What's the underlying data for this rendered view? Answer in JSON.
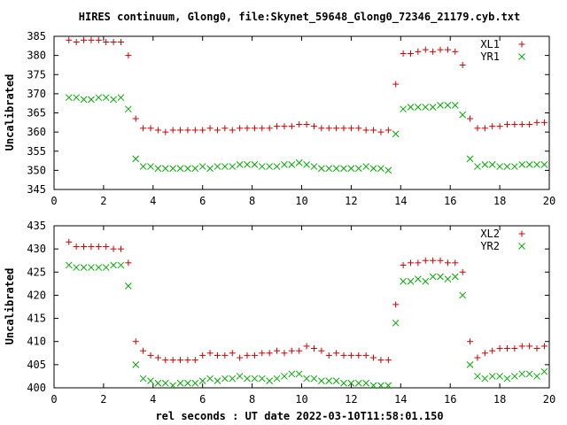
{
  "title": "HIRES continuum, Glong0, file:Skynet_59648_Glong0_72346_21179.cyb.txt",
  "xlabel": "rel seconds : UT date 2022-03-10T11:58:01.150",
  "chart_data": [
    {
      "type": "scatter",
      "ylabel": "Uncalibrated",
      "xlim": [
        0,
        20
      ],
      "ylim": [
        345,
        385
      ],
      "xticks": [
        "0",
        "2",
        "4",
        "6",
        "8",
        "10",
        "12",
        "14",
        "16",
        "18",
        "20"
      ],
      "yticks": [
        "345",
        "350",
        "355",
        "360",
        "365",
        "370",
        "375",
        "380",
        "385"
      ],
      "grid": false,
      "legend_position": "top-right",
      "series": [
        {
          "name": "XL1",
          "marker": "plus",
          "color": "#cc0000",
          "x": [
            0.6,
            0.9,
            1.2,
            1.5,
            1.8,
            2.1,
            2.4,
            2.7,
            3.0,
            3.3,
            3.6,
            3.9,
            4.2,
            4.5,
            4.8,
            5.1,
            5.4,
            5.7,
            6.0,
            6.3,
            6.6,
            6.9,
            7.2,
            7.5,
            7.8,
            8.1,
            8.4,
            8.7,
            9.0,
            9.3,
            9.6,
            9.9,
            10.2,
            10.5,
            10.8,
            11.1,
            11.4,
            11.7,
            12.0,
            12.3,
            12.6,
            12.9,
            13.2,
            13.5,
            13.8,
            14.1,
            14.4,
            14.7,
            15.0,
            15.3,
            15.6,
            15.9,
            16.2,
            16.5,
            16.8,
            17.1,
            17.4,
            17.7,
            18.0,
            18.3,
            18.6,
            18.9,
            19.2,
            19.5,
            19.8
          ],
          "y": [
            384,
            383.5,
            384,
            384,
            384,
            383.5,
            383.5,
            383.5,
            380,
            363.5,
            361,
            361,
            360.5,
            360,
            360.5,
            360.5,
            360.5,
            360.5,
            360.5,
            361,
            360.5,
            361,
            360.5,
            361,
            361,
            361,
            361,
            361,
            361.5,
            361.5,
            361.5,
            362,
            362,
            361.5,
            361,
            361,
            361,
            361,
            361,
            361,
            360.5,
            360.5,
            360,
            360.5,
            372.5,
            380.5,
            380.5,
            381,
            381.5,
            381,
            381.5,
            381.5,
            381,
            377.5,
            363.5,
            361,
            361,
            361.5,
            361.5,
            362,
            362,
            362,
            362,
            362.5,
            362.5
          ]
        },
        {
          "name": "YR1",
          "marker": "cross",
          "color": "#00aa00",
          "x": [
            0.6,
            0.9,
            1.2,
            1.5,
            1.8,
            2.1,
            2.4,
            2.7,
            3.0,
            3.3,
            3.6,
            3.9,
            4.2,
            4.5,
            4.8,
            5.1,
            5.4,
            5.7,
            6.0,
            6.3,
            6.6,
            6.9,
            7.2,
            7.5,
            7.8,
            8.1,
            8.4,
            8.7,
            9.0,
            9.3,
            9.6,
            9.9,
            10.2,
            10.5,
            10.8,
            11.1,
            11.4,
            11.7,
            12.0,
            12.3,
            12.6,
            12.9,
            13.2,
            13.5,
            13.8,
            14.1,
            14.4,
            14.7,
            15.0,
            15.3,
            15.6,
            15.9,
            16.2,
            16.5,
            16.8,
            17.1,
            17.4,
            17.7,
            18.0,
            18.3,
            18.6,
            18.9,
            19.2,
            19.5,
            19.8
          ],
          "y": [
            369,
            369,
            368.5,
            368.5,
            369,
            369,
            368.5,
            369,
            366,
            353,
            351,
            351,
            350.5,
            350.5,
            350.5,
            350.5,
            350.5,
            350.5,
            351,
            350.5,
            351,
            351,
            351,
            351.5,
            351.5,
            351.5,
            351,
            351,
            351,
            351.5,
            351.5,
            352,
            351.5,
            351,
            350.5,
            350.5,
            350.5,
            350.5,
            350.5,
            350.5,
            351,
            350.5,
            350.5,
            350,
            359.5,
            366,
            366.5,
            366.5,
            366.5,
            366.5,
            367,
            367,
            367,
            364.5,
            353,
            351,
            351.5,
            351.5,
            351,
            351,
            351,
            351.5,
            351.5,
            351.5,
            351.5
          ]
        }
      ]
    },
    {
      "type": "scatter",
      "ylabel": "Uncalibrated",
      "xlim": [
        0,
        20
      ],
      "ylim": [
        400,
        435
      ],
      "xticks": [
        "0",
        "2",
        "4",
        "6",
        "8",
        "10",
        "12",
        "14",
        "16",
        "18",
        "20"
      ],
      "yticks": [
        "400",
        "405",
        "410",
        "415",
        "420",
        "425",
        "430",
        "435"
      ],
      "grid": false,
      "legend_position": "top-right",
      "series": [
        {
          "name": "XL2",
          "marker": "plus",
          "color": "#cc0000",
          "x": [
            0.6,
            0.9,
            1.2,
            1.5,
            1.8,
            2.1,
            2.4,
            2.7,
            3.0,
            3.3,
            3.6,
            3.9,
            4.2,
            4.5,
            4.8,
            5.1,
            5.4,
            5.7,
            6.0,
            6.3,
            6.6,
            6.9,
            7.2,
            7.5,
            7.8,
            8.1,
            8.4,
            8.7,
            9.0,
            9.3,
            9.6,
            9.9,
            10.2,
            10.5,
            10.8,
            11.1,
            11.4,
            11.7,
            12.0,
            12.3,
            12.6,
            12.9,
            13.2,
            13.5,
            13.8,
            14.1,
            14.4,
            14.7,
            15.0,
            15.3,
            15.6,
            15.9,
            16.2,
            16.5,
            16.8,
            17.1,
            17.4,
            17.7,
            18.0,
            18.3,
            18.6,
            18.9,
            19.2,
            19.5,
            19.8
          ],
          "y": [
            431.5,
            430.5,
            430.5,
            430.5,
            430.5,
            430.5,
            430,
            430,
            427,
            410,
            408,
            407,
            406.5,
            406,
            406,
            406,
            406,
            406,
            407,
            407.5,
            407,
            407,
            407.5,
            406.5,
            407,
            407,
            407.5,
            407.5,
            408,
            407.5,
            408,
            408,
            409,
            408.5,
            408,
            407,
            407.5,
            407,
            407,
            407,
            407,
            406.5,
            406,
            406,
            418,
            426.5,
            427,
            427,
            427.5,
            427.5,
            427.5,
            427,
            427,
            425,
            410,
            406.5,
            407.5,
            408,
            408.5,
            408.5,
            408.5,
            409,
            409,
            408.5,
            409
          ]
        },
        {
          "name": "YR2",
          "marker": "cross",
          "color": "#00aa00",
          "x": [
            0.6,
            0.9,
            1.2,
            1.5,
            1.8,
            2.1,
            2.4,
            2.7,
            3.0,
            3.3,
            3.6,
            3.9,
            4.2,
            4.5,
            4.8,
            5.1,
            5.4,
            5.7,
            6.0,
            6.3,
            6.6,
            6.9,
            7.2,
            7.5,
            7.8,
            8.1,
            8.4,
            8.7,
            9.0,
            9.3,
            9.6,
            9.9,
            10.2,
            10.5,
            10.8,
            11.1,
            11.4,
            11.7,
            12.0,
            12.3,
            12.6,
            12.9,
            13.2,
            13.5,
            13.8,
            14.1,
            14.4,
            14.7,
            15.0,
            15.3,
            15.6,
            15.9,
            16.2,
            16.5,
            16.8,
            17.1,
            17.4,
            17.7,
            18.0,
            18.3,
            18.6,
            18.9,
            19.2,
            19.5,
            19.8
          ],
          "y": [
            426.5,
            426,
            426,
            426,
            426,
            426,
            426.5,
            426.5,
            422,
            405,
            402,
            401.5,
            401,
            401,
            400.5,
            401,
            401,
            401,
            401.5,
            402,
            401.5,
            402,
            402,
            402.5,
            402,
            402,
            402,
            401.5,
            402,
            402.5,
            403,
            403,
            402,
            402,
            401.5,
            401.5,
            401.5,
            401,
            401,
            401,
            401,
            400.5,
            400.5,
            400.5,
            414,
            423,
            423,
            423.5,
            423,
            424,
            424,
            423.5,
            424,
            420,
            405,
            402.5,
            402,
            402.5,
            402.5,
            402,
            402.5,
            403,
            403,
            402.5,
            403.5
          ]
        }
      ]
    }
  ]
}
